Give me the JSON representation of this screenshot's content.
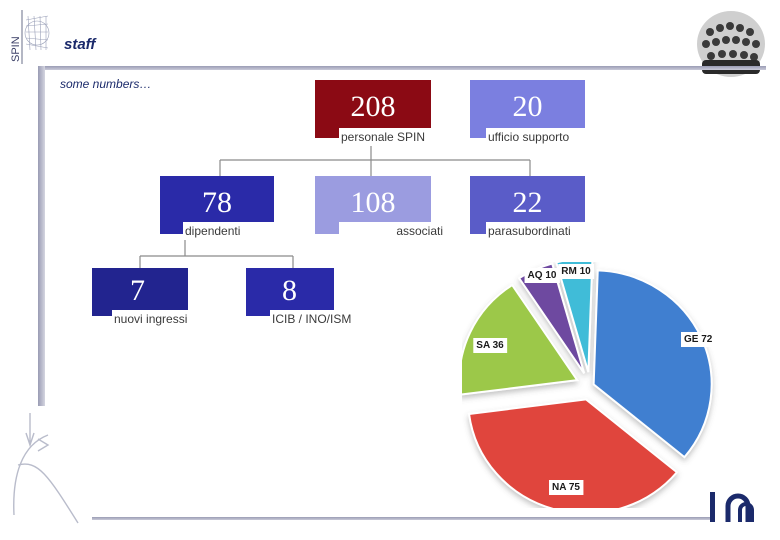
{
  "header": {
    "title": "staff",
    "subtitle": "some numbers…"
  },
  "logos": {
    "spin_text": "SPIN"
  },
  "stats": {
    "personale": {
      "value": "208",
      "label": "personale SPIN",
      "color": "#8b0a14"
    },
    "ufficio": {
      "value": "20",
      "label": "ufficio supporto",
      "color": "#7b7fe0"
    },
    "dipendenti": {
      "value": "78",
      "label": "dipendenti",
      "color": "#2a2aa8"
    },
    "associati": {
      "value": "108",
      "label": "associati",
      "color": "#9b9ce0"
    },
    "parasubordinati": {
      "value": "22",
      "label": "parasubordinati",
      "color": "#5a5cc8"
    },
    "nuovi": {
      "value": "7",
      "label": "nuovi ingressi",
      "color": "#22248f"
    },
    "icib": {
      "value": "8",
      "label": "ICIB / INO/ISM",
      "color": "#2a2aa8"
    }
  },
  "chart_data": {
    "type": "pie",
    "slices": [
      {
        "label": "GE 72",
        "name": "GE",
        "value": 72,
        "color": "#3f7fd0"
      },
      {
        "label": "NA 75",
        "name": "NA",
        "value": 75,
        "color": "#e0453c"
      },
      {
        "label": "SA 36",
        "name": "SA",
        "value": 36,
        "color": "#9cc84a"
      },
      {
        "label": "AQ 10",
        "name": "AQ",
        "value": 10,
        "color": "#6e4aa0"
      },
      {
        "label": "RM 10",
        "name": "RM",
        "value": 10,
        "color": "#3fbcd8"
      }
    ]
  }
}
